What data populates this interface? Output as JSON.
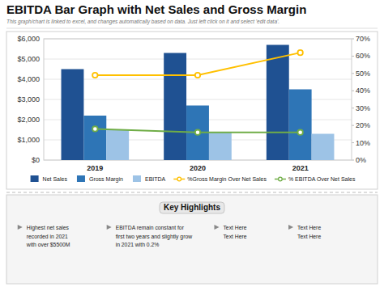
{
  "chart_data": {
    "type": "bar",
    "title": "EBITDA Bar Graph with Net Sales and Gross Margin",
    "subtitle": "This graph/chart is linked to excel, and changes automatically based on data. Just left click on it and select 'edit data'.",
    "categories": [
      "2019",
      "2020",
      "2021"
    ],
    "series": [
      {
        "name": "Net Sales",
        "color": "#1F5192",
        "values": [
          4500,
          5300,
          5700
        ]
      },
      {
        "name": "Gross Margin",
        "color": "#2E75B6",
        "values": [
          2200,
          2700,
          3500
        ]
      },
      {
        "name": "EBITDA",
        "color": "#9DC3E6",
        "values": [
          1500,
          1400,
          1300
        ]
      },
      {
        "name": "%Gross Margin Over Net Sales",
        "type": "line",
        "axis": "y2",
        "color": "#FFC000",
        "marker": "circle",
        "values": [
          49,
          49,
          62
        ]
      },
      {
        "name": "% EBITDA Over Net Sales",
        "type": "line",
        "axis": "y2",
        "color": "#70AD47",
        "marker": "circle",
        "values": [
          18,
          16,
          16
        ]
      }
    ],
    "ylim": [
      0,
      6000
    ],
    "yticks": [
      {
        "value": 0,
        "label": "$0"
      },
      {
        "value": 1000,
        "label": "$1,000"
      },
      {
        "value": 2000,
        "label": "$2,000"
      },
      {
        "value": 3000,
        "label": "$3,000"
      },
      {
        "value": 4000,
        "label": "$4,000"
      },
      {
        "value": 5000,
        "label": "$5,000"
      },
      {
        "value": 6000,
        "label": "$6,000"
      }
    ],
    "y2lim": [
      0,
      70
    ],
    "y2ticks": [
      {
        "value": 0,
        "label": "0%"
      },
      {
        "value": 10,
        "label": "10%"
      },
      {
        "value": 20,
        "label": "20%"
      },
      {
        "value": 30,
        "label": "30%"
      },
      {
        "value": 40,
        "label": "40%"
      },
      {
        "value": 50,
        "label": "50%"
      },
      {
        "value": 60,
        "label": "60%"
      },
      {
        "value": 70,
        "label": "70%"
      }
    ],
    "grid": true,
    "legend": "bottom",
    "annotations": [
      "Key Highlights",
      "Highest net sales\nrecorded in 2021\nwith over $5500M",
      "EBITDA remain constant for\nfirst two years and slightly grow\nin 2021 with 0.2%",
      "Text Here\nText Here",
      "Text Here\nText Here"
    ]
  }
}
